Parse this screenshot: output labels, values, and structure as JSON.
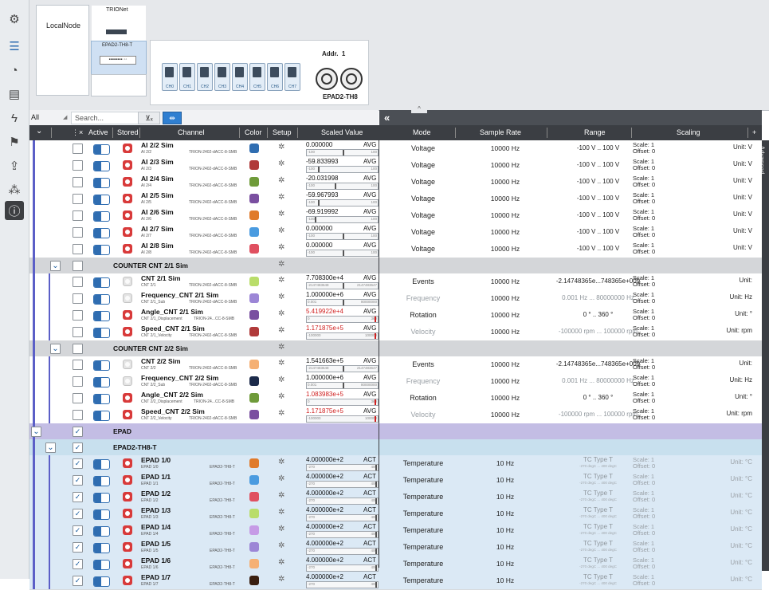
{
  "top": {
    "local_node": "LocalNode",
    "trionet_label": "TRIONet",
    "epad_node_label": "EPAD2-TH8-T",
    "addr_label": "Addr.",
    "addr_value": "1",
    "device_name": "EPAD2-TH8",
    "channels": [
      "CH0",
      "CH1",
      "CH2",
      "CH3",
      "CH4",
      "CH5",
      "CH6",
      "CH7"
    ]
  },
  "filter": {
    "all_label": "All",
    "search_placeholder": "Search...",
    "collapse_label": "«",
    "advanced_label": "Advanced"
  },
  "headers": {
    "active": "Active",
    "stored": "Stored",
    "channel": "Channel",
    "color": "Color",
    "setup": "Setup",
    "scaled_value": "Scaled Value",
    "mode": "Mode",
    "sample_rate": "Sample Rate",
    "range": "Range",
    "scaling": "Scaling",
    "add": "+"
  },
  "ai_rows": [
    {
      "name": "AI 2/2 Sim",
      "sub": "AI 2/2",
      "dev": "TRION-2402-dACC-8-SMB",
      "color": "#2f6db1",
      "value": "0.000000",
      "vmode": "AVG",
      "bl": "-100",
      "br": "100",
      "mode": "Voltage",
      "rate": "10000 Hz",
      "range": "-100 V .. 100 V",
      "scale": "Scale: 1",
      "offset": "Offset: 0",
      "unit": "Unit: V"
    },
    {
      "name": "AI 2/3 Sim",
      "sub": "AI 2/3",
      "dev": "TRION-2402-dACC-8-SMB",
      "color": "#b03a3a",
      "value": "-59.833993",
      "vmode": "AVG",
      "bl": "-100",
      "br": "100",
      "mode": "Voltage",
      "rate": "10000 Hz",
      "range": "-100 V .. 100 V",
      "scale": "Scale: 1",
      "offset": "Offset: 0",
      "unit": "Unit: V"
    },
    {
      "name": "AI 2/4 Sim",
      "sub": "AI 2/4",
      "dev": "TRION-2402-dACC-8-SMB",
      "color": "#6f9b3a",
      "value": "-20.031998",
      "vmode": "AVG",
      "bl": "-100",
      "br": "100",
      "mode": "Voltage",
      "rate": "10000 Hz",
      "range": "-100 V .. 100 V",
      "scale": "Scale: 1",
      "offset": "Offset: 0",
      "unit": "Unit: V"
    },
    {
      "name": "AI 2/5 Sim",
      "sub": "AI 2/5",
      "dev": "TRION-2402-dACC-8-SMB",
      "color": "#7a4fa0",
      "value": "-59.967993",
      "vmode": "AVG",
      "bl": "-100",
      "br": "100",
      "mode": "Voltage",
      "rate": "10000 Hz",
      "range": "-100 V .. 100 V",
      "scale": "Scale: 1",
      "offset": "Offset: 0",
      "unit": "Unit: V"
    },
    {
      "name": "AI 2/6 Sim",
      "sub": "AI 2/6",
      "dev": "TRION-2402-dACC-8-SMB",
      "color": "#e07a2a",
      "value": "-69.919992",
      "vmode": "AVG",
      "bl": "-100",
      "br": "100",
      "mode": "Voltage",
      "rate": "10000 Hz",
      "range": "-100 V .. 100 V",
      "scale": "Scale: 1",
      "offset": "Offset: 0",
      "unit": "Unit: V"
    },
    {
      "name": "AI 2/7 Sim",
      "sub": "AI 2/7",
      "dev": "TRION-2402-dACC-8-SMB",
      "color": "#4a9be0",
      "value": "0.000000",
      "vmode": "AVG",
      "bl": "-100",
      "br": "100",
      "mode": "Voltage",
      "rate": "10000 Hz",
      "range": "-100 V .. 100 V",
      "scale": "Scale: 1",
      "offset": "Offset: 0",
      "unit": "Unit: V"
    },
    {
      "name": "AI 2/8 Sim",
      "sub": "AI 2/8",
      "dev": "TRION-2402-dACC-8-SMB",
      "color": "#e05060",
      "value": "0.000000",
      "vmode": "AVG",
      "bl": "-100",
      "br": "100",
      "mode": "Voltage",
      "rate": "10000 Hz",
      "range": "-100 V .. 100 V",
      "scale": "Scale: 1",
      "offset": "Offset: 0",
      "unit": "Unit: V"
    }
  ],
  "counter1": {
    "title": "COUNTER CNT 2/1 Sim",
    "rows": [
      {
        "name": "CNT 2/1 Sim",
        "sub": "CNT 2/1",
        "dev": "TRION-2402-dACC-8-SMB",
        "color": "#b9dd6a",
        "value": "7.708300e+4",
        "red": false,
        "vmode": "AVG",
        "bl": "-2147483648",
        "br": "2147483647",
        "mode": "Events",
        "dim": false,
        "rate": "10000 Hz",
        "range": "-2.14748365e...748365e+009",
        "scale": "Scale: 1",
        "offset": "Offset: 0",
        "unit": "Unit:"
      },
      {
        "name": "Frequency_CNT 2/1 Sim",
        "sub": "CNT 2/1_Sub",
        "dev": "TRION-2402-dACC-8-SMB",
        "color": "#9c86d6",
        "value": "1.000000e+6",
        "red": false,
        "vmode": "AVG",
        "bl": "0.001",
        "br": "80000000",
        "mode": "Frequency",
        "dim": true,
        "rate": "10000 Hz",
        "range": "0.001 Hz ... 80000000 Hz",
        "scale": "Scale: 1",
        "offset": "Offset: 0",
        "unit": "Unit: Hz"
      },
      {
        "name": "Angle_CNT 2/1 Sim",
        "sub": "CNT 2/1_Displacement",
        "dev": "TRION-24...CC-8-SMB",
        "color": "#7a4fa0",
        "value": "5.419922e+4",
        "red": true,
        "vmode": "AVG",
        "bl": "0",
        "br": "360",
        "mode": "Rotation",
        "dim": false,
        "rate": "10000 Hz",
        "range": "0 ° .. 360 °",
        "scale": "Scale: 1",
        "offset": "Offset: 0",
        "unit": "Unit: °"
      },
      {
        "name": "Speed_CNT 2/1 Sim",
        "sub": "CNT 2/1_Velocity",
        "dev": "TRION-2402-dACC-8-SMB",
        "color": "#b03a3a",
        "value": "1.171875e+5",
        "red": true,
        "vmode": "AVG",
        "bl": "-100000",
        "br": "100000",
        "mode": "Velocity",
        "dim": true,
        "rate": "10000 Hz",
        "range": "-100000 rpm ... 100000 rpm",
        "scale": "Scale: 1",
        "offset": "Offset: 0",
        "unit": "Unit: rpm"
      }
    ]
  },
  "counter2": {
    "title": "COUNTER CNT 2/2 Sim",
    "rows": [
      {
        "name": "CNT 2/2 Sim",
        "sub": "CNT 2/2",
        "dev": "TRION-2402-dACC-8-SMB",
        "color": "#f5b074",
        "value": "1.541663e+5",
        "red": false,
        "vmode": "AVG",
        "bl": "-2147483648",
        "br": "2147483647",
        "mode": "Events",
        "dim": false,
        "rate": "10000 Hz",
        "range": "-2.14748365e...748365e+009",
        "scale": "Scale: 1",
        "offset": "Offset: 0",
        "unit": "Unit:"
      },
      {
        "name": "Frequency_CNT 2/2 Sim",
        "sub": "CNT 2/2_Sub",
        "dev": "TRION-2402-dACC-8-SMB",
        "color": "#1c2a4a",
        "value": "1.000000e+6",
        "red": false,
        "vmode": "AVG",
        "bl": "0.001",
        "br": "80000000",
        "mode": "Frequency",
        "dim": true,
        "rate": "10000 Hz",
        "range": "0.001 Hz ... 80000000 Hz",
        "scale": "Scale: 1",
        "offset": "Offset: 0",
        "unit": "Unit: Hz"
      },
      {
        "name": "Angle_CNT 2/2 Sim",
        "sub": "CNT 2/2_Displacement",
        "dev": "TRION-24...CC-8-SMB",
        "color": "#6f9b3a",
        "value": "1.083983e+5",
        "red": true,
        "vmode": "AVG",
        "bl": "0",
        "br": "360",
        "mode": "Rotation",
        "dim": false,
        "rate": "10000 Hz",
        "range": "0 ° .. 360 °",
        "scale": "Scale: 1",
        "offset": "Offset: 0",
        "unit": "Unit: °"
      },
      {
        "name": "Speed_CNT 2/2 Sim",
        "sub": "CNT 2/2_Velocity",
        "dev": "TRION-2402-dACC-8-SMB",
        "color": "#7a4fa0",
        "value": "1.171875e+5",
        "red": true,
        "vmode": "AVG",
        "bl": "-100000",
        "br": "100000",
        "mode": "Velocity",
        "dim": true,
        "rate": "10000 Hz",
        "range": "-100000 rpm ... 100000 rpm",
        "scale": "Scale: 1",
        "offset": "Offset: 0",
        "unit": "Unit: rpm"
      }
    ]
  },
  "epad": {
    "title": "EPAD",
    "sub_title": "EPAD2-TH8-T",
    "rows": [
      {
        "name": "EPAD 1/0",
        "sub": "EPAD 1/0",
        "dev": "EPAD2-TH8-T",
        "color": "#e07a2a",
        "value": "4.000000e+2",
        "vmode": "ACT",
        "bl": "-270",
        "br": "400",
        "mode": "Temperature",
        "rate": "10 Hz",
        "range": "TC Type T",
        "range_sm": "-270 degC ... 400 degC",
        "scale": "Scale: 1",
        "offset": "Offset: 0",
        "unit": "Unit: °C"
      },
      {
        "name": "EPAD 1/1",
        "sub": "EPAD 1/1",
        "dev": "EPAD2-TH8-T",
        "color": "#4a9be0",
        "value": "4.000000e+2",
        "vmode": "ACT",
        "bl": "-270",
        "br": "400",
        "mode": "Temperature",
        "rate": "10 Hz",
        "range": "TC Type T",
        "range_sm": "-270 degC ... 400 degC",
        "scale": "Scale: 1",
        "offset": "Offset: 0",
        "unit": "Unit: °C"
      },
      {
        "name": "EPAD 1/2",
        "sub": "EPAD 1/2",
        "dev": "EPAD2-TH8-T",
        "color": "#e05060",
        "value": "4.000000e+2",
        "vmode": "ACT",
        "bl": "-270",
        "br": "400",
        "mode": "Temperature",
        "rate": "10 Hz",
        "range": "TC Type T",
        "range_sm": "-270 degC ... 400 degC",
        "scale": "Scale: 1",
        "offset": "Offset: 0",
        "unit": "Unit: °C"
      },
      {
        "name": "EPAD 1/3",
        "sub": "EPAD 1/3",
        "dev": "EPAD2-TH8-T",
        "color": "#b9dd6a",
        "value": "4.000000e+2",
        "vmode": "ACT",
        "bl": "-270",
        "br": "400",
        "mode": "Temperature",
        "rate": "10 Hz",
        "range": "TC Type T",
        "range_sm": "-270 degC ... 400 degC",
        "scale": "Scale: 1",
        "offset": "Offset: 0",
        "unit": "Unit: °C"
      },
      {
        "name": "EPAD 1/4",
        "sub": "EPAD 1/4",
        "dev": "EPAD2-TH8-T",
        "color": "#c69be6",
        "value": "4.000000e+2",
        "vmode": "ACT",
        "bl": "-270",
        "br": "400",
        "mode": "Temperature",
        "rate": "10 Hz",
        "range": "TC Type T",
        "range_sm": "-270 degC ... 400 degC",
        "scale": "Scale: 1",
        "offset": "Offset: 0",
        "unit": "Unit: °C"
      },
      {
        "name": "EPAD 1/5",
        "sub": "EPAD 1/5",
        "dev": "EPAD2-TH8-T",
        "color": "#9c86d6",
        "value": "4.000000e+2",
        "vmode": "ACT",
        "bl": "-270",
        "br": "400",
        "mode": "Temperature",
        "rate": "10 Hz",
        "range": "TC Type T",
        "range_sm": "-270 degC ... 400 degC",
        "scale": "Scale: 1",
        "offset": "Offset: 0",
        "unit": "Unit: °C"
      },
      {
        "name": "EPAD 1/6",
        "sub": "EPAD 1/6",
        "dev": "EPAD2-TH8-T",
        "color": "#f5b074",
        "value": "4.000000e+2",
        "vmode": "ACT",
        "bl": "-270",
        "br": "400",
        "mode": "Temperature",
        "rate": "10 Hz",
        "range": "TC Type T",
        "range_sm": "-270 degC ... 400 degC",
        "scale": "Scale: 1",
        "offset": "Offset: 0",
        "unit": "Unit: °C"
      },
      {
        "name": "EPAD 1/7",
        "sub": "EPAD 1/7",
        "dev": "EPAD2-TH8-T",
        "color": "#3a1f10",
        "value": "4.000000e+2",
        "vmode": "ACT",
        "bl": "-270",
        "br": "400",
        "mode": "Temperature",
        "rate": "10 Hz",
        "range": "TC Type T",
        "range_sm": "-270 degC ... 400 degC",
        "scale": "Scale: 1",
        "offset": "Offset: 0",
        "unit": "Unit: °C"
      }
    ]
  }
}
